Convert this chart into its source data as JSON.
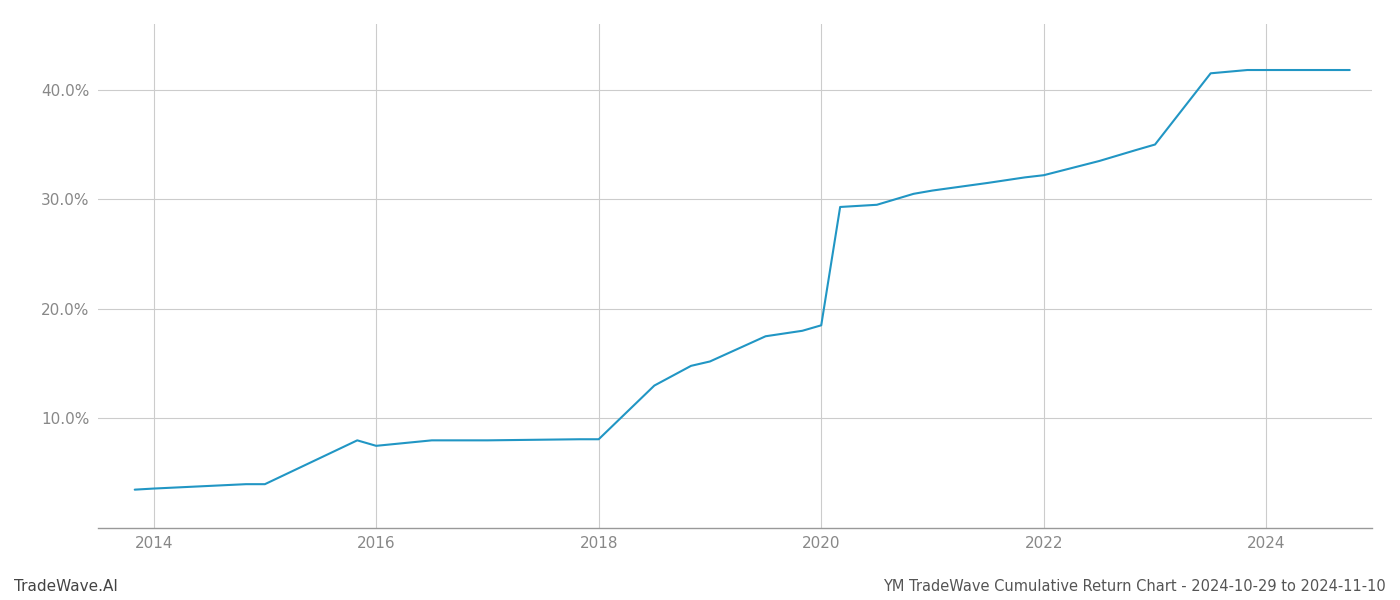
{
  "title": "YM TradeWave Cumulative Return Chart - 2024-10-29 to 2024-11-10",
  "watermark": "TradeWave.AI",
  "line_color": "#2196c4",
  "background_color": "#ffffff",
  "grid_color": "#cccccc",
  "x_values": [
    2013.83,
    2014.0,
    2014.83,
    2015.0,
    2015.83,
    2016.0,
    2016.5,
    2016.83,
    2017.0,
    2017.83,
    2018.0,
    2018.5,
    2018.83,
    2019.0,
    2019.5,
    2019.83,
    2020.0,
    2020.17,
    2020.5,
    2020.83,
    2021.0,
    2021.5,
    2021.83,
    2022.0,
    2022.5,
    2022.83,
    2023.0,
    2023.5,
    2023.83,
    2024.0,
    2024.75
  ],
  "y_values": [
    3.5,
    3.6,
    4.0,
    4.0,
    8.0,
    7.5,
    8.0,
    8.0,
    8.0,
    8.1,
    8.1,
    13.0,
    14.8,
    15.2,
    17.5,
    18.0,
    18.5,
    29.3,
    29.5,
    30.5,
    30.8,
    31.5,
    32.0,
    32.2,
    33.5,
    34.5,
    35.0,
    41.5,
    41.8,
    41.8,
    41.8
  ],
  "xlim": [
    2013.5,
    2024.95
  ],
  "ylim": [
    0,
    46
  ],
  "yticks": [
    10.0,
    20.0,
    30.0,
    40.0
  ],
  "ytick_labels": [
    "10.0%",
    "20.0%",
    "30.0%",
    "40.0%"
  ],
  "xticks": [
    2014,
    2016,
    2018,
    2020,
    2022,
    2024
  ],
  "line_width": 1.5,
  "title_fontsize": 10.5,
  "tick_fontsize": 11,
  "watermark_fontsize": 11,
  "title_color": "#555555",
  "tick_color": "#888888",
  "watermark_color": "#444444",
  "spine_color": "#999999"
}
